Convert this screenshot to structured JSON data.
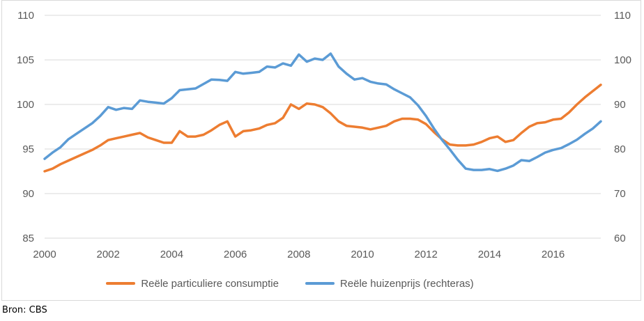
{
  "source_note": "Bron: CBS",
  "colors": {
    "consumption_line": "#ED7D31",
    "house_price_line": "#5B9BD5",
    "gridline": "#D9D9D9",
    "frame_border": "#D9D9D9",
    "axis_text": "#595959",
    "source_text": "#000000",
    "background": "#FFFFFF"
  },
  "chart_data": {
    "type": "line",
    "title": "",
    "frequency": "quarterly",
    "x_start": "2000Q1",
    "x_end": "2017Q3",
    "grid": true,
    "legend_position": "bottom",
    "x_tick_labels": [
      "2000",
      "2002",
      "2004",
      "2006",
      "2008",
      "2010",
      "2012",
      "2014",
      "2016"
    ],
    "left_axis": {
      "range": [
        85,
        110
      ],
      "tick_labels": [
        "85",
        "90",
        "95",
        "100",
        "105",
        "110"
      ]
    },
    "right_axis": {
      "range": [
        60,
        110
      ],
      "tick_labels": [
        "60",
        "70",
        "80",
        "90",
        "100",
        "110"
      ]
    },
    "series": [
      {
        "name": "Reële particuliere consumptie",
        "axis": "left",
        "color": "#ED7D31",
        "values": [
          92.5,
          92.8,
          93.3,
          93.7,
          94.1,
          94.5,
          94.9,
          95.4,
          96.0,
          96.2,
          96.4,
          96.6,
          96.8,
          96.3,
          96.0,
          95.7,
          95.7,
          97.0,
          96.4,
          96.4,
          96.6,
          97.1,
          97.7,
          98.1,
          96.4,
          97.0,
          97.1,
          97.3,
          97.7,
          97.9,
          98.5,
          100.0,
          99.5,
          100.1,
          100.0,
          99.7,
          99.0,
          98.1,
          97.6,
          97.5,
          97.4,
          97.2,
          97.4,
          97.6,
          98.1,
          98.4,
          98.4,
          98.3,
          97.8,
          96.9,
          96.1,
          95.5,
          95.4,
          95.4,
          95.5,
          95.8,
          96.2,
          96.4,
          95.8,
          96.0,
          96.8,
          97.5,
          97.9,
          98.0,
          98.3,
          98.4,
          99.1,
          100.0,
          100.8,
          101.5,
          102.2
        ]
      },
      {
        "name": "Reële huizenprijs (rechteras)",
        "axis": "right",
        "color": "#5B9BD5",
        "values": [
          77.8,
          79.2,
          80.4,
          82.2,
          83.4,
          84.6,
          85.8,
          87.4,
          89.4,
          88.8,
          89.2,
          89.0,
          90.9,
          90.6,
          90.4,
          90.2,
          91.4,
          93.2,
          93.4,
          93.6,
          94.6,
          95.6,
          95.5,
          95.3,
          97.3,
          96.9,
          97.1,
          97.3,
          98.5,
          98.3,
          99.2,
          98.7,
          101.2,
          99.6,
          100.3,
          100.0,
          101.4,
          98.5,
          96.9,
          95.6,
          95.9,
          95.1,
          94.7,
          94.5,
          93.4,
          92.5,
          91.6,
          89.8,
          87.4,
          84.6,
          82.1,
          79.9,
          77.6,
          75.6,
          75.3,
          75.3,
          75.5,
          75.1,
          75.6,
          76.3,
          77.5,
          77.3,
          78.2,
          79.2,
          79.8,
          80.2,
          81.1,
          82.1,
          83.4,
          84.6,
          86.2
        ]
      }
    ]
  }
}
